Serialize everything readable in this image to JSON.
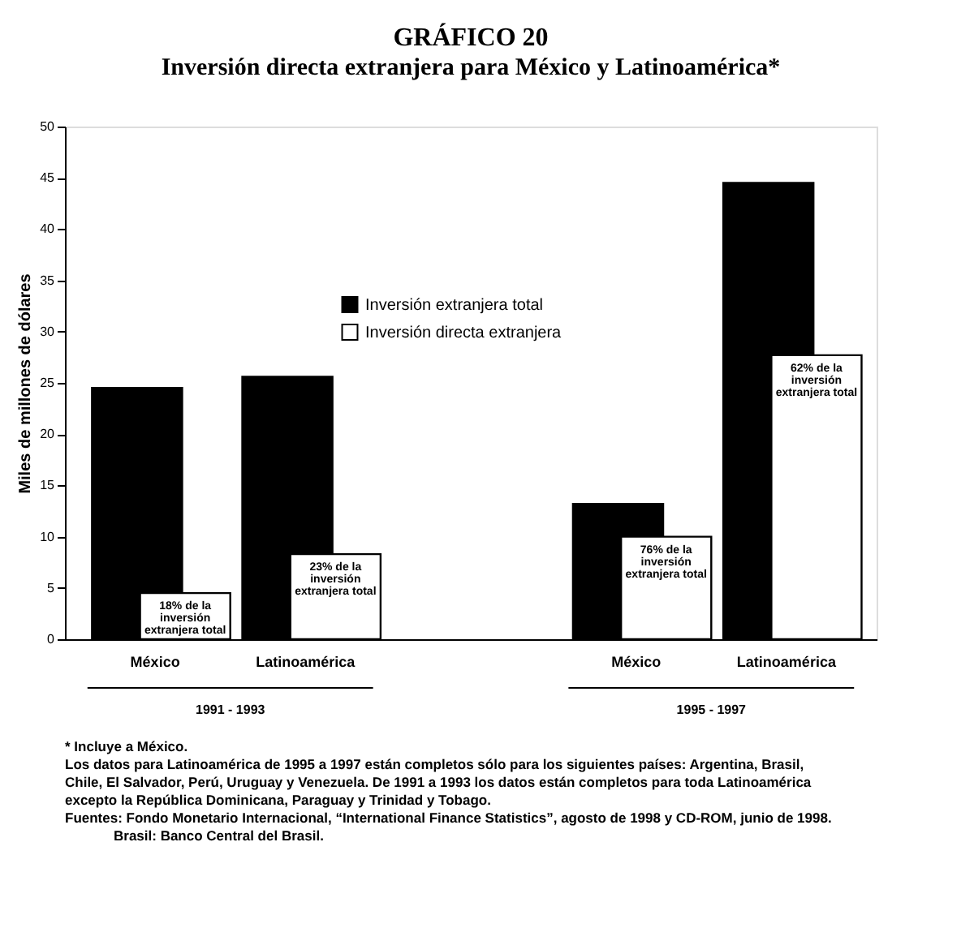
{
  "chart_data": {
    "type": "bar",
    "title": "GRÁFICO 20",
    "subtitle": "Inversión directa extranjera para México y Latinoamérica*",
    "ylabel": "Miles de millones de dólares",
    "categories": [
      "México",
      "Latinoamérica",
      "México",
      "Latinoamérica"
    ],
    "series": [
      {
        "name": "Inversión extranjera total",
        "color": "#000000",
        "values": [
          24.5,
          25.6,
          13.2,
          44.5
        ]
      },
      {
        "name": "Inversión directa extranjera",
        "color": "#ffffff",
        "values": [
          4.5,
          8.3,
          10.0,
          27.7
        ]
      }
    ],
    "ylim": [
      0,
      50
    ],
    "yticks": [
      0,
      5,
      10,
      15,
      20,
      25,
      30,
      35,
      40,
      45,
      50
    ],
    "grid": false,
    "legend": "top",
    "annotations": [
      "18% de la inversión extranjera total",
      "23% de la inversión extranjera total",
      "76% de la inversión extranjera total",
      "62% de la inversión extranjera total",
      "1991 - 1993",
      "1995 - 1997",
      "* Incluye a México.",
      "Los datos para Latinoamérica de 1995 a 1997 están completos sólo para los siguientes países: Argentina, Brasil, Chile, El Salvador, Perú, Uruguay y Venezuela. De 1991 a 1993 los datos están completos para toda Latinoamérica excepto la República Dominicana, Paraguay y Trinidad y Tobago.",
      "Fuentes: Fondo Monetario Internacional, “International Finance Statistics”, agosto de 1998 y CD-ROM, junio de 1998.",
      "Brasil: Banco Central del Brasil."
    ]
  }
}
